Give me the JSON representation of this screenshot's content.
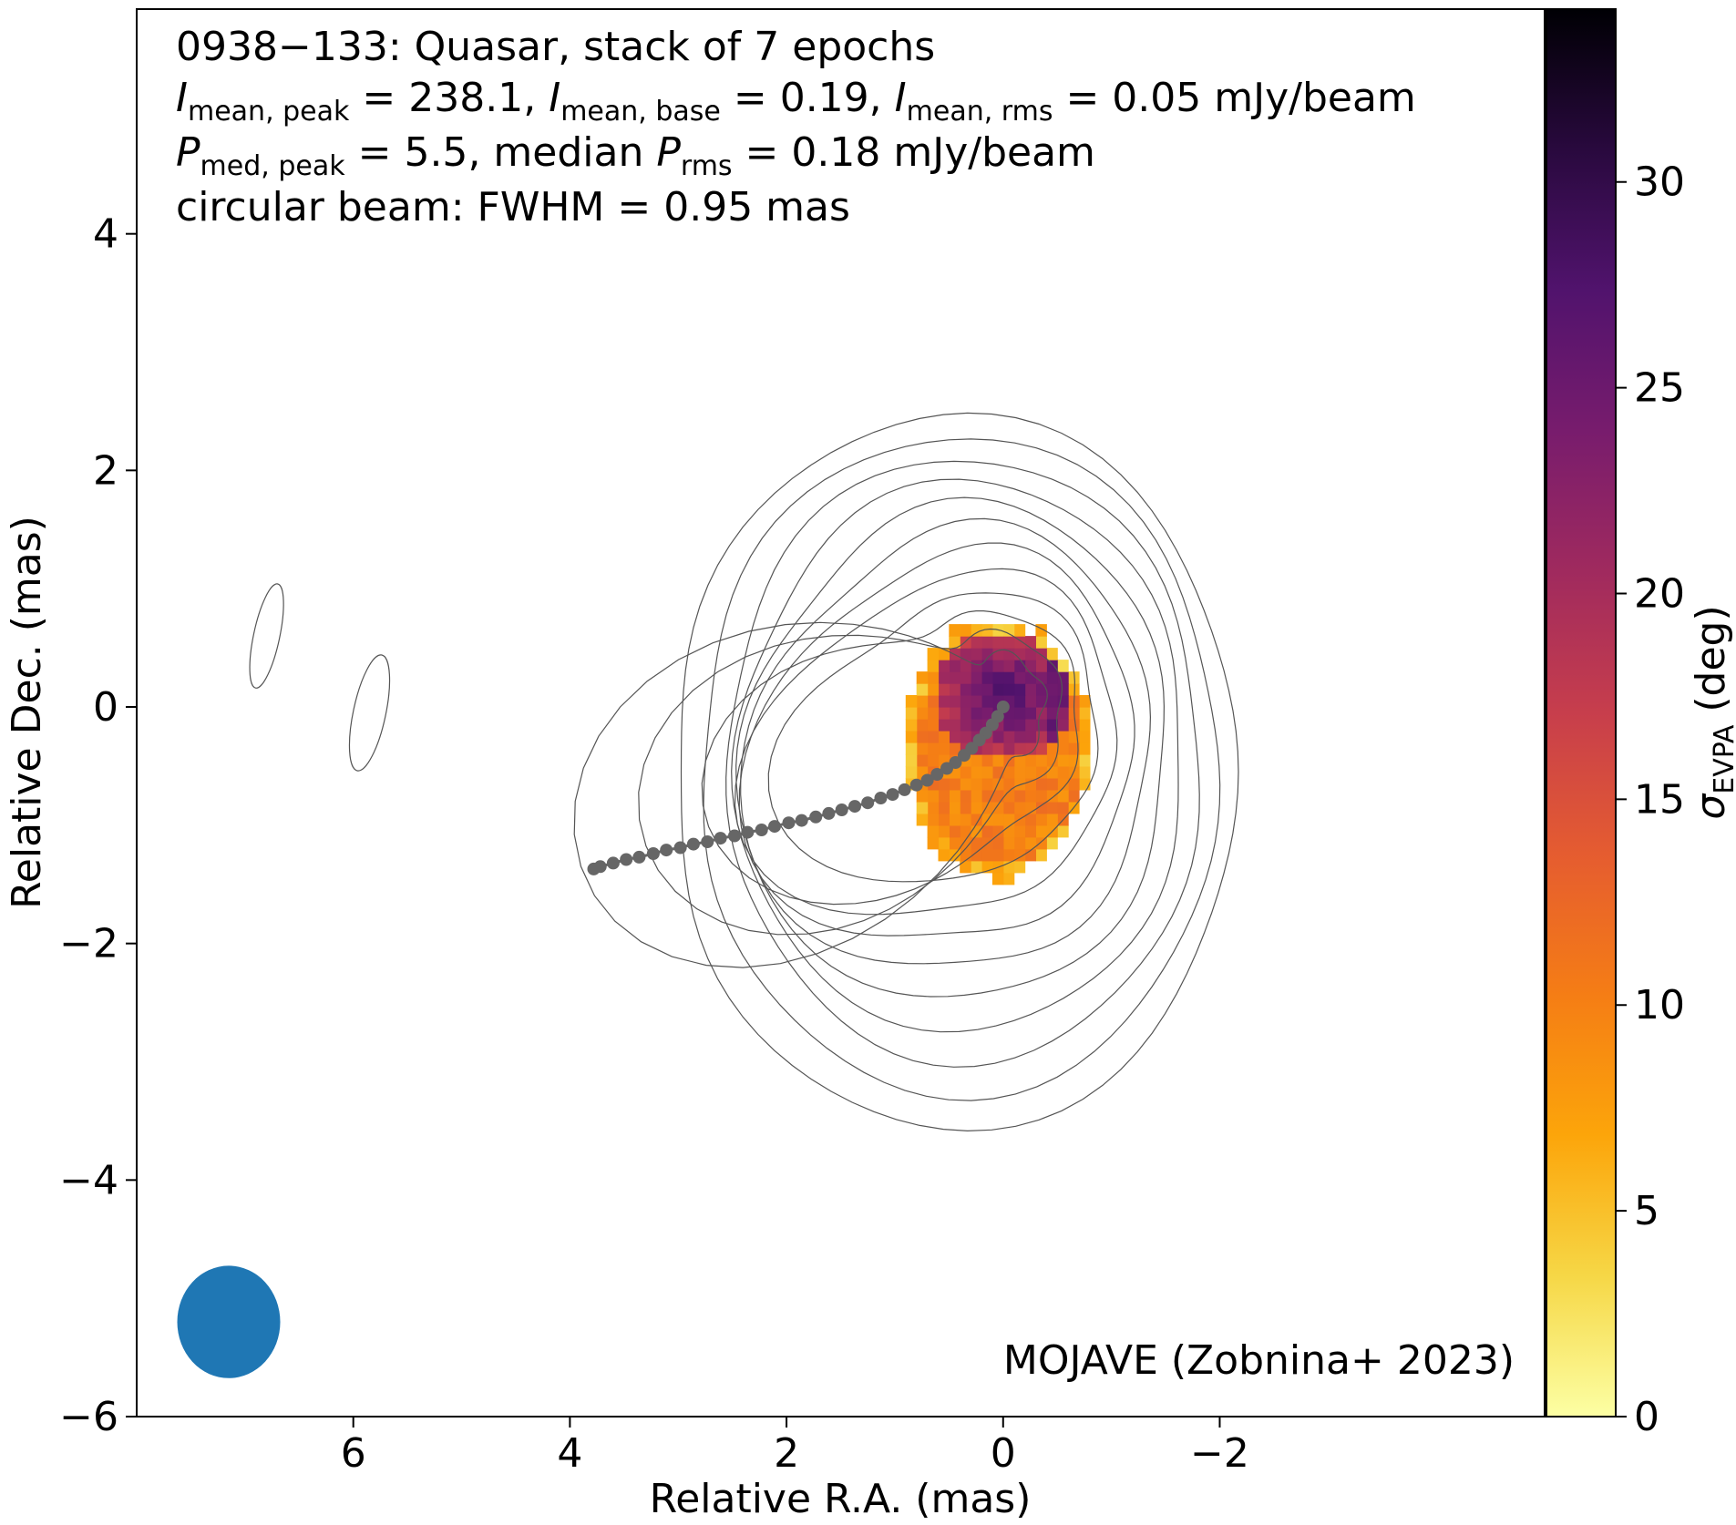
{
  "chart_data": {
    "type": "heatmap",
    "title_lines": [
      "0938−133: Quasar, stack of 7 epochs",
      "I_mean,peak = 238.1, I_mean,base = 0.19, I_mean,rms = 0.05 mJy/beam",
      "P_med,peak = 5.5, median P_rms = 0.18 mJy/beam",
      "circular beam: FWHM = 0.95 mas"
    ],
    "title_parts": {
      "source": "0938−133: Quasar, stack of 7 epochs",
      "i_peak_label": "mean, peak",
      "i_peak": "238.1",
      "i_base_label": "mean, base",
      "i_base": "0.19",
      "i_rms_label": "mean, rms",
      "i_rms": "0.05",
      "p_peak_label": "med, peak",
      "p_peak": "5.5",
      "p_rms_label": "rms",
      "p_rms": "0.18",
      "unit": "mJy/beam",
      "beam": "circular beam: FWHM = 0.95 mas"
    },
    "xlabel": "Relative R.A. (mas)",
    "ylabel": "Relative Dec. (mas)",
    "xlim": [
      8.0,
      -5.0
    ],
    "ylim": [
      -6.0,
      5.9
    ],
    "x_ticks": [
      6,
      4,
      2,
      0,
      -2
    ],
    "x_tick_labels": [
      "6",
      "4",
      "2",
      "0",
      "−2"
    ],
    "y_ticks": [
      -6,
      -4,
      -2,
      0,
      2,
      4
    ],
    "y_tick_labels": [
      "−6",
      "−4",
      "−2",
      "0",
      "2",
      "4"
    ],
    "colorbar": {
      "label": "σ",
      "label_sub": "EVPA",
      "label_unit": "(deg)",
      "range": [
        0,
        34.2
      ],
      "ticks": [
        0,
        5,
        10,
        15,
        20,
        25,
        30
      ],
      "tick_labels": [
        "0",
        "5",
        "10",
        "15",
        "20",
        "25",
        "30"
      ],
      "colormap": "inferno_r",
      "colormap_stops": [
        "#fcffa4",
        "#f6d746",
        "#fca50a",
        "#f57d15",
        "#e55c30",
        "#c73e4c",
        "#a02a5e",
        "#781c6d",
        "#51136d",
        "#29093e",
        "#000004"
      ]
    },
    "contours": {
      "color": "#555555",
      "core_center": [
        0.0,
        0.0
      ],
      "jet_direction_deg": 200,
      "levels_count": 12
    },
    "jet_ridge": {
      "color": "#666666",
      "points": [
        [
          0.0,
          0.0
        ],
        [
          0.05,
          -0.08
        ],
        [
          0.1,
          -0.15
        ],
        [
          0.16,
          -0.22
        ],
        [
          0.22,
          -0.28
        ],
        [
          0.29,
          -0.35
        ],
        [
          0.36,
          -0.41
        ],
        [
          0.44,
          -0.47
        ],
        [
          0.52,
          -0.52
        ],
        [
          0.61,
          -0.57
        ],
        [
          0.7,
          -0.62
        ],
        [
          0.8,
          -0.66
        ],
        [
          0.91,
          -0.7
        ],
        [
          1.02,
          -0.74
        ],
        [
          1.13,
          -0.77
        ],
        [
          1.25,
          -0.81
        ],
        [
          1.37,
          -0.84
        ],
        [
          1.49,
          -0.87
        ],
        [
          1.61,
          -0.9
        ],
        [
          1.73,
          -0.93
        ],
        [
          1.86,
          -0.96
        ],
        [
          1.98,
          -0.98
        ],
        [
          2.11,
          -1.01
        ],
        [
          2.23,
          -1.04
        ],
        [
          2.36,
          -1.06
        ],
        [
          2.48,
          -1.09
        ],
        [
          2.61,
          -1.11
        ],
        [
          2.73,
          -1.14
        ],
        [
          2.86,
          -1.16
        ],
        [
          2.98,
          -1.19
        ],
        [
          3.11,
          -1.21
        ],
        [
          3.23,
          -1.24
        ],
        [
          3.36,
          -1.27
        ],
        [
          3.48,
          -1.29
        ],
        [
          3.6,
          -1.32
        ],
        [
          3.72,
          -1.35
        ],
        [
          3.78,
          -1.37
        ]
      ]
    },
    "beam": {
      "fwhm_mas": 0.95,
      "color": "#1f77b4",
      "center": [
        7.15,
        -5.2
      ]
    },
    "credit": "MOJAVE (Zobnina+ 2023)"
  }
}
